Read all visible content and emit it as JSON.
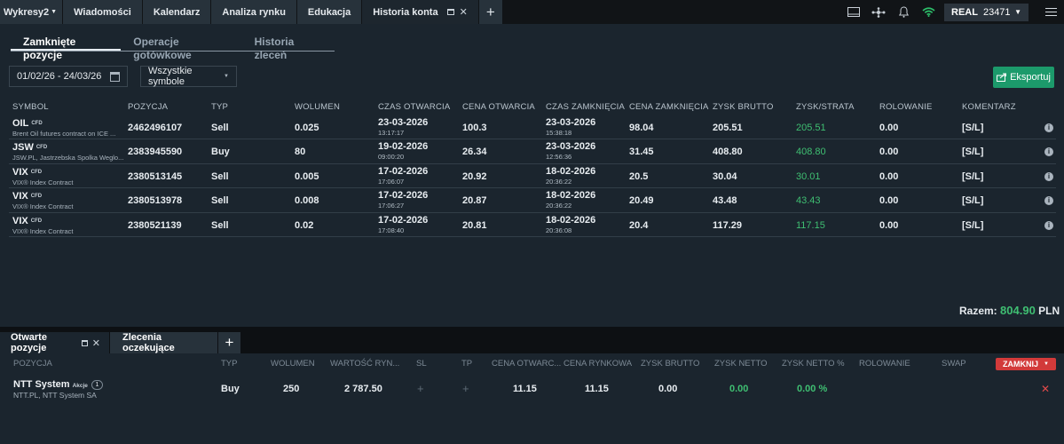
{
  "top_tabs": [
    {
      "label": "Wykresy2"
    },
    {
      "label": "Wiadomości"
    },
    {
      "label": "Kalendarz"
    },
    {
      "label": "Analiza rynku"
    },
    {
      "label": "Edukacja"
    },
    {
      "label": "Historia konta"
    }
  ],
  "account": {
    "type": "REAL",
    "number": "23471"
  },
  "sub_tabs": [
    "Zamknięte pozycje",
    "Operacje gotówkowe",
    "Historia zleceń"
  ],
  "filters": {
    "date_range": "01/02/26 - 24/03/26",
    "symbol": "Wszystkie symbole"
  },
  "export_label": "Eksportuj",
  "closed_headers": [
    "SYMBOL",
    "POZYCJA",
    "TYP",
    "WOLUMEN",
    "CZAS OTWARCIA",
    "CENA OTWARCIA",
    "CZAS ZAMKNIĘCIA",
    "CENA ZAMKNIĘCIA",
    "ZYSK BRUTTO",
    "ZYSK/STRATA",
    "ROLOWANIE",
    "KOMENTARZ"
  ],
  "closed_rows": [
    {
      "symbol": "OIL",
      "tag": "CFD",
      "desc": "Brent Oil futures contract on ICE ...",
      "position": "2462496107",
      "type": "Sell",
      "volume": "0.025",
      "open_date": "23-03-2026",
      "open_time": "13:17:17",
      "open_price": "100.3",
      "close_date": "23-03-2026",
      "close_time": "15:38:18",
      "close_price": "98.04",
      "gross": "205.51",
      "pl": "205.51",
      "rollover": "0.00",
      "comment": "[S/L]"
    },
    {
      "symbol": "JSW",
      "tag": "CFD",
      "desc": "JSW.PL, Jastrzebska Spolka Weglo...",
      "position": "2383945590",
      "type": "Buy",
      "volume": "80",
      "open_date": "19-02-2026",
      "open_time": "09:00:20",
      "open_price": "26.34",
      "close_date": "23-03-2026",
      "close_time": "12:56:36",
      "close_price": "31.45",
      "gross": "408.80",
      "pl": "408.80",
      "rollover": "0.00",
      "comment": "[S/L]"
    },
    {
      "symbol": "VIX",
      "tag": "CFD",
      "desc": "VIX® Index Contract",
      "position": "2380513145",
      "type": "Sell",
      "volume": "0.005",
      "open_date": "17-02-2026",
      "open_time": "17:06:07",
      "open_price": "20.92",
      "close_date": "18-02-2026",
      "close_time": "20:36:22",
      "close_price": "20.5",
      "gross": "30.04",
      "pl": "30.01",
      "rollover": "0.00",
      "comment": "[S/L]"
    },
    {
      "symbol": "VIX",
      "tag": "CFD",
      "desc": "VIX® Index Contract",
      "position": "2380513978",
      "type": "Sell",
      "volume": "0.008",
      "open_date": "17-02-2026",
      "open_time": "17:06:27",
      "open_price": "20.87",
      "close_date": "18-02-2026",
      "close_time": "20:36:22",
      "close_price": "20.49",
      "gross": "43.48",
      "pl": "43.43",
      "rollover": "0.00",
      "comment": "[S/L]"
    },
    {
      "symbol": "VIX",
      "tag": "CFD",
      "desc": "VIX® Index Contract",
      "position": "2380521139",
      "type": "Sell",
      "volume": "0.02",
      "open_date": "17-02-2026",
      "open_time": "17:08:40",
      "open_price": "20.81",
      "close_date": "18-02-2026",
      "close_time": "20:36:08",
      "close_price": "20.4",
      "gross": "117.29",
      "pl": "117.15",
      "rollover": "0.00",
      "comment": "[S/L]"
    }
  ],
  "total": {
    "label": "Razem:",
    "value": "804.90",
    "currency": "PLN"
  },
  "bottom_tabs": [
    "Otwarte pozycje",
    "Zlecenia oczekujące"
  ],
  "open_headers": [
    "POZYCJA",
    "TYP",
    "WOLUMEN",
    "WARTOŚĆ RYN...",
    "SL",
    "TP",
    "CENA OTWARC...",
    "CENA RYNKOWA",
    "ZYSK BRUTTO",
    "ZYSK NETTO",
    "ZYSK NETTO %",
    "ROLOWANIE",
    "SWAP"
  ],
  "close_all_label": "ZAMKNIJ",
  "open_rows": [
    {
      "name": "NTT System",
      "tag": "Akcje",
      "count": "1",
      "desc": "NTT.PL, NTT System SA",
      "type": "Buy",
      "volume": "250",
      "market_value": "2 787.50",
      "sl": "+",
      "tp": "+",
      "open_price": "11.15",
      "market_price": "11.15",
      "gross": "0.00",
      "net": "0.00",
      "net_pct": "0.00 %"
    }
  ],
  "colors": {
    "profit": "#3fbf72",
    "export_button": "#1c9a6b",
    "close_button": "#d23a3a"
  },
  "icons": [
    "layout-icon",
    "network-icon",
    "bell-icon",
    "wifi-icon",
    "menu-icon",
    "calendar-icon",
    "export-icon",
    "info-icon",
    "close-icon"
  ]
}
